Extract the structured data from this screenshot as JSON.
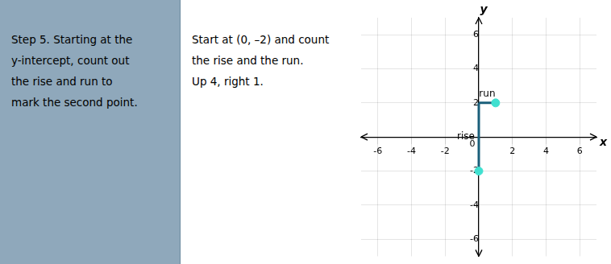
{
  "chart_data": {
    "type": "scatter",
    "annotations": [
      [
        "Step 5. Starting at the",
        "y-intercept, count out",
        "the rise and run to",
        "mark the second point."
      ],
      [
        "Start at (0, –2) and count",
        "the rise and the run.",
        "Up 4, right 1."
      ]
    ],
    "xlabel": "x",
    "ylabel": "y",
    "series": [
      {
        "name": "rise",
        "type": "line",
        "color": "#1a5f7a",
        "x": [
          0,
          0
        ],
        "values": [
          -2,
          2
        ]
      },
      {
        "name": "run",
        "type": "line",
        "color": "#1a5f7a",
        "x": [
          0,
          1
        ],
        "values": [
          2,
          2
        ]
      },
      {
        "type": "scatter",
        "color": "#40e0d0",
        "x": [
          0,
          1
        ],
        "values": [
          -2,
          2
        ]
      }
    ],
    "xlim": [
      -7,
      7
    ],
    "ylim": [
      -7,
      7
    ],
    "xticks": [
      -6,
      -4,
      -2,
      0,
      2,
      4,
      6
    ],
    "yticks": [
      -6,
      -4,
      -2,
      0,
      2,
      4,
      6
    ],
    "grid": true
  }
}
